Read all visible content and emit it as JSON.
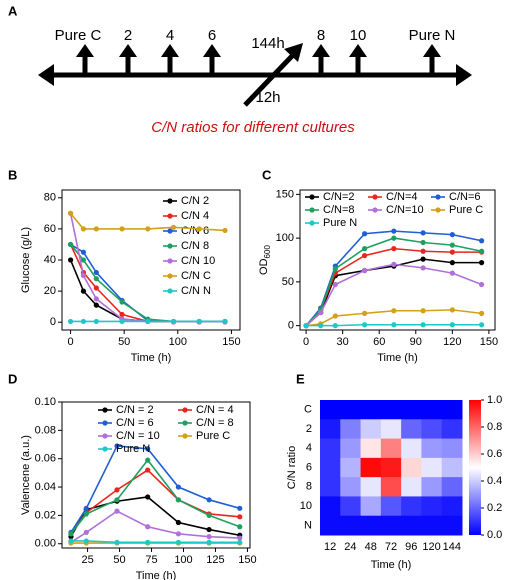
{
  "diagram": {
    "panel_label": "A",
    "labels": [
      "Pure C",
      "2",
      "4",
      "6",
      "8",
      "10",
      "Pure N"
    ],
    "diagonal_top": "144h",
    "diagonal_bottom": "12h",
    "caption": "C/N ratios for different cultures"
  },
  "chart_data": [
    {
      "type": "line",
      "panel_label": "B",
      "xlabel": "Time (h)",
      "ylabel": "Glucose (g/L)",
      "x": [
        0,
        12,
        24,
        48,
        72,
        96,
        120,
        144
      ],
      "series": [
        {
          "name": "C/N 2",
          "color": "#000000",
          "values": [
            40,
            20,
            11,
            2,
            0.5,
            0.3,
            0.3,
            0.3
          ]
        },
        {
          "name": "C/N 4",
          "color": "#e8261e",
          "values": [
            50,
            32,
            22,
            5,
            0.5,
            0.3,
            0.3,
            0.3
          ]
        },
        {
          "name": "C/N 6",
          "color": "#1f5fd6",
          "values": [
            50,
            45,
            32,
            14,
            1,
            0.5,
            0.5,
            0.5
          ]
        },
        {
          "name": "C/N 8",
          "color": "#1fa060",
          "values": [
            50,
            40,
            28,
            13,
            2,
            0.5,
            0.5,
            0.5
          ]
        },
        {
          "name": "C/N 10",
          "color": "#b070d8",
          "values": [
            70,
            30,
            15,
            2,
            0.5,
            0.3,
            0.3,
            0.3
          ]
        },
        {
          "name": "C/N C",
          "color": "#d4a017",
          "values": [
            70,
            60,
            60,
            60,
            60,
            61,
            60,
            59
          ]
        },
        {
          "name": "C/N N",
          "color": "#1ec8c8",
          "values": [
            0.5,
            0.5,
            0.5,
            0.5,
            0.5,
            0.5,
            0.5,
            0.5
          ]
        }
      ],
      "xlim": [
        -8,
        158
      ],
      "ylim": [
        -5,
        85
      ],
      "xticks": [
        0,
        50,
        100,
        150
      ],
      "yticks": [
        0,
        20,
        40,
        60,
        80
      ]
    },
    {
      "type": "line",
      "panel_label": "C",
      "xlabel": "Time (h)",
      "ylabel": "OD",
      "ylabel_sub": "600",
      "x": [
        0,
        12,
        24,
        48,
        72,
        96,
        120,
        144
      ],
      "series": [
        {
          "name": "C/N=2",
          "color": "#000000",
          "values": [
            0,
            15,
            57,
            63,
            68,
            76,
            72,
            72
          ]
        },
        {
          "name": "C/N=4",
          "color": "#e8261e",
          "values": [
            0,
            18,
            60,
            80,
            88,
            85,
            84,
            84
          ]
        },
        {
          "name": "C/N=6",
          "color": "#1f5fd6",
          "values": [
            0,
            20,
            68,
            105,
            108,
            106,
            104,
            97
          ]
        },
        {
          "name": "C/N=8",
          "color": "#1fa060",
          "values": [
            0,
            18,
            65,
            88,
            100,
            95,
            92,
            85
          ]
        },
        {
          "name": "C/N=10",
          "color": "#b070d8",
          "values": [
            0,
            15,
            47,
            63,
            70,
            66,
            60,
            47
          ]
        },
        {
          "name": "Pure C",
          "color": "#d4a017",
          "values": [
            0,
            2,
            11,
            14,
            17,
            17,
            18,
            14
          ]
        },
        {
          "name": "Pure N",
          "color": "#1ec8c8",
          "values": [
            0,
            0,
            0,
            1,
            1,
            1,
            1,
            1
          ]
        }
      ],
      "xlim": [
        -5,
        155
      ],
      "ylim": [
        -5,
        155
      ],
      "xticks": [
        0,
        30,
        60,
        90,
        120,
        150
      ],
      "yticks": [
        0,
        50,
        100,
        150
      ]
    },
    {
      "type": "line",
      "panel_label": "D",
      "xlabel": "Time (h)",
      "ylabel": "Valencene (a.u.)",
      "x": [
        12,
        24,
        48,
        72,
        96,
        120,
        144
      ],
      "series": [
        {
          "name": "C/N = 2",
          "color": "#000000",
          "values": [
            0.005,
            0.024,
            0.03,
            0.033,
            0.015,
            0.01,
            0.006
          ]
        },
        {
          "name": "C/N = 4",
          "color": "#e8261e",
          "values": [
            0.007,
            0.022,
            0.038,
            0.052,
            0.031,
            0.021,
            0.019
          ]
        },
        {
          "name": "C/N = 6",
          "color": "#1f5fd6",
          "values": [
            0.008,
            0.025,
            0.069,
            0.067,
            0.04,
            0.031,
            0.025
          ]
        },
        {
          "name": "C/N = 8",
          "color": "#1fa060",
          "values": [
            0.007,
            0.021,
            0.031,
            0.059,
            0.031,
            0.02,
            0.012
          ]
        },
        {
          "name": "C/N = 10",
          "color": "#b070d8",
          "values": [
            0.001,
            0.008,
            0.023,
            0.012,
            0.007,
            0.005,
            0.004
          ]
        },
        {
          "name": "Pure C",
          "color": "#d4a017",
          "values": [
            0.0005,
            0.0005,
            0.0005,
            0.0005,
            0.0005,
            0.0005,
            0.0005
          ]
        },
        {
          "name": "Pure N",
          "color": "#1ec8c8",
          "values": [
            0.002,
            0.002,
            0.001,
            0.001,
            0.001,
            0.001,
            0.001
          ]
        }
      ],
      "xlim": [
        5,
        152
      ],
      "ylim": [
        -0.003,
        0.1
      ],
      "xticks": [
        25,
        50,
        75,
        100,
        125,
        150
      ],
      "yticks": [
        {
          "value": 0,
          "label": "0.00"
        },
        {
          "value": 0.02,
          "label": "0.02"
        },
        {
          "value": 0.04,
          "label": "0.04"
        },
        {
          "value": 0.06,
          "label": "0.06"
        },
        {
          "value": 0.08,
          "label": "0.08"
        },
        {
          "value": 0.1,
          "label": "0.10"
        }
      ]
    },
    {
      "type": "heatmap",
      "panel_label": "E",
      "xlabel": "Time (h)",
      "ylabel": "C/N ratio",
      "categories": [
        "12",
        "24",
        "48",
        "72",
        "96",
        "120",
        "144"
      ],
      "rows": [
        "C",
        "2",
        "4",
        "6",
        "8",
        "10",
        "N"
      ],
      "values": [
        [
          0,
          0,
          0,
          0,
          0,
          0,
          0
        ],
        [
          0.05,
          0.25,
          0.4,
          0.45,
          0.2,
          0.15,
          0.1
        ],
        [
          0.1,
          0.3,
          0.55,
          0.75,
          0.45,
          0.3,
          0.28
        ],
        [
          0.1,
          0.35,
          0.98,
          0.95,
          0.58,
          0.45,
          0.37
        ],
        [
          0.1,
          0.3,
          0.45,
          0.85,
          0.45,
          0.3,
          0.2
        ],
        [
          0.02,
          0.12,
          0.33,
          0.17,
          0.1,
          0.07,
          0.05
        ],
        [
          0.02,
          0.02,
          0.02,
          0.02,
          0.02,
          0.02,
          0.02
        ]
      ],
      "colormap": [
        "#0000ff",
        "#ffffff",
        "#ff0000"
      ],
      "zlim": [
        0,
        1
      ],
      "zticks": [
        {
          "value": 0,
          "label": "0.0"
        },
        {
          "value": 0.2,
          "label": "0.2"
        },
        {
          "value": 0.4,
          "label": "0.4"
        },
        {
          "value": 0.6,
          "label": "0.6"
        },
        {
          "value": 0.8,
          "label": "0.8"
        },
        {
          "value": 1,
          "label": "1.0"
        }
      ]
    }
  ]
}
